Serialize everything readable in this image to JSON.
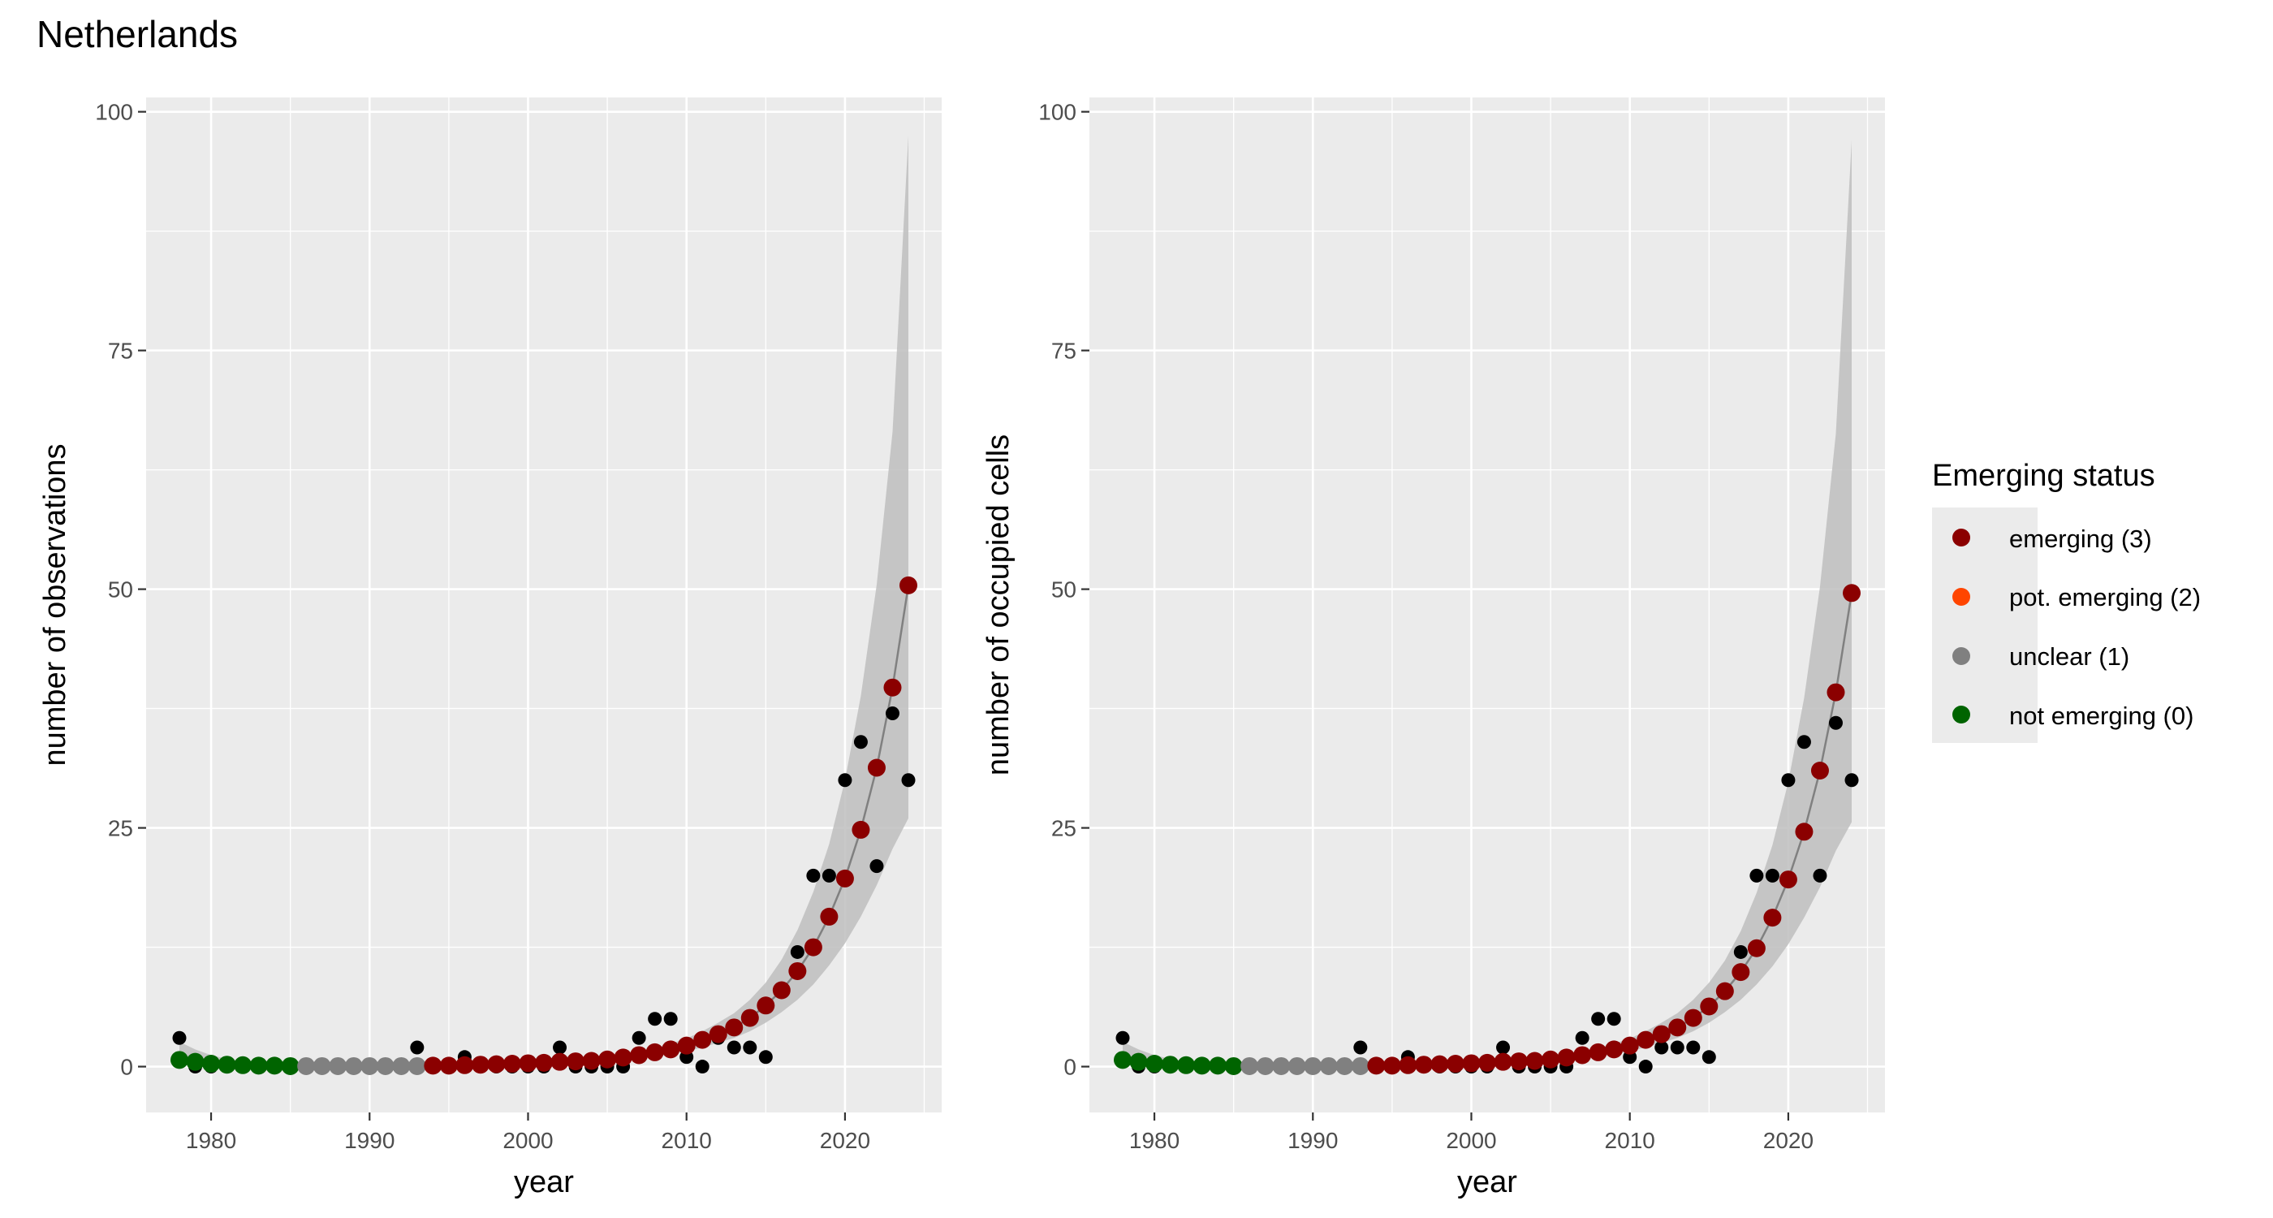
{
  "title": "Netherlands",
  "legend": {
    "title": "Emerging status",
    "items": [
      {
        "label": "emerging (3)",
        "color": "#8B0000"
      },
      {
        "label": "pot. emerging (2)",
        "color": "#FF4500"
      },
      {
        "label": "unclear (1)",
        "color": "#808080"
      },
      {
        "label": "not emerging (0)",
        "color": "#006400"
      }
    ]
  },
  "colors": {
    "panel": "#EBEBEB",
    "observed_points": "#000000",
    "ribbon": "#BEBEBE",
    "fit_line": "#808080"
  },
  "chart_data": [
    {
      "type": "scatter",
      "xlabel": "year",
      "ylabel": "number of observations",
      "xlim": [
        1975.9,
        2026.1
      ],
      "ylim": [
        -4.8,
        101.5
      ],
      "x_ticks": [
        1980,
        1990,
        2000,
        2010,
        2020
      ],
      "y_ticks": [
        0,
        25,
        50,
        75,
        100
      ],
      "grid": true,
      "legend_position": "right",
      "observed": {
        "x": [
          1978,
          1979,
          1980,
          1981,
          1982,
          1983,
          1984,
          1985,
          1986,
          1987,
          1988,
          1989,
          1990,
          1991,
          1992,
          1993,
          1994,
          1995,
          1996,
          1997,
          1998,
          1999,
          2000,
          2001,
          2002,
          2003,
          2004,
          2005,
          2006,
          2007,
          2008,
          2009,
          2010,
          2011,
          2012,
          2013,
          2014,
          2015,
          2016,
          2017,
          2018,
          2019,
          2020,
          2021,
          2022,
          2023,
          2024
        ],
        "y": [
          3,
          0,
          0,
          0,
          0,
          0,
          0,
          0,
          0,
          0,
          0,
          0,
          0,
          0,
          0,
          2,
          0,
          0,
          1,
          0,
          0,
          0,
          0,
          0,
          2,
          0,
          0,
          0,
          0,
          3,
          5,
          5,
          1,
          0,
          3,
          2,
          2,
          1,
          8,
          12,
          20,
          20,
          30,
          34,
          21,
          37,
          30
        ]
      },
      "fit": {
        "x": [
          1978,
          1979,
          1980,
          1981,
          1982,
          1983,
          1984,
          1985,
          1986,
          1987,
          1988,
          1989,
          1990,
          1991,
          1992,
          1993,
          1994,
          1995,
          1996,
          1997,
          1998,
          1999,
          2000,
          2001,
          2002,
          2003,
          2004,
          2005,
          2006,
          2007,
          2008,
          2009,
          2010,
          2011,
          2012,
          2013,
          2014,
          2015,
          2016,
          2017,
          2018,
          2019,
          2020,
          2021,
          2022,
          2023,
          2024
        ],
        "y": [
          0.7,
          0.5,
          0.3,
          0.2,
          0.15,
          0.1,
          0.1,
          0.05,
          0.05,
          0.05,
          0.05,
          0.05,
          0.05,
          0.05,
          0.05,
          0.05,
          0.1,
          0.1,
          0.15,
          0.2,
          0.25,
          0.3,
          0.35,
          0.4,
          0.5,
          0.55,
          0.6,
          0.75,
          0.95,
          1.2,
          1.5,
          1.8,
          2.2,
          2.8,
          3.4,
          4.1,
          5.1,
          6.4,
          8.0,
          10.0,
          12.5,
          15.7,
          19.7,
          24.8,
          31.3,
          39.7,
          50.4
        ],
        "lower": [
          0.2,
          0.1,
          0.05,
          0.02,
          0.01,
          0.01,
          0.01,
          0,
          0,
          0,
          0,
          0,
          0,
          0,
          0,
          0,
          0,
          0.02,
          0.05,
          0.08,
          0.1,
          0.15,
          0.2,
          0.25,
          0.3,
          0.35,
          0.4,
          0.5,
          0.65,
          0.85,
          1.1,
          1.3,
          1.6,
          2.0,
          2.5,
          3.0,
          3.7,
          4.6,
          5.7,
          7.0,
          8.6,
          10.6,
          12.9,
          15.7,
          19.0,
          22.8,
          26.0
        ],
        "upper": [
          2.6,
          1.8,
          1.2,
          0.8,
          0.55,
          0.4,
          0.3,
          0.22,
          0.18,
          0.15,
          0.14,
          0.13,
          0.13,
          0.14,
          0.15,
          0.18,
          0.2,
          0.22,
          0.26,
          0.3,
          0.36,
          0.42,
          0.5,
          0.58,
          0.66,
          0.76,
          0.86,
          1.05,
          1.3,
          1.6,
          1.95,
          2.4,
          2.95,
          3.7,
          4.6,
          5.6,
          7.0,
          8.8,
          11.2,
          14.3,
          18.3,
          23.3,
          30.0,
          38.8,
          50.5,
          66.5,
          97.5
        ],
        "status": [
          0,
          0,
          0,
          0,
          0,
          0,
          0,
          0,
          1,
          1,
          1,
          1,
          1,
          1,
          1,
          1,
          3,
          3,
          3,
          3,
          3,
          3,
          3,
          3,
          3,
          3,
          3,
          3,
          3,
          3,
          3,
          3,
          3,
          3,
          3,
          3,
          3,
          3,
          3,
          3,
          3,
          3,
          3,
          3,
          3,
          3,
          3
        ]
      }
    },
    {
      "type": "scatter",
      "xlabel": "year",
      "ylabel": "number of occupied cells",
      "xlim": [
        1975.9,
        2026.1
      ],
      "ylim": [
        -4.8,
        101.5
      ],
      "x_ticks": [
        1980,
        1990,
        2000,
        2010,
        2020
      ],
      "y_ticks": [
        0,
        25,
        50,
        75,
        100
      ],
      "grid": true,
      "legend_position": "right",
      "observed": {
        "x": [
          1978,
          1979,
          1980,
          1981,
          1982,
          1983,
          1984,
          1985,
          1986,
          1987,
          1988,
          1989,
          1990,
          1991,
          1992,
          1993,
          1994,
          1995,
          1996,
          1997,
          1998,
          1999,
          2000,
          2001,
          2002,
          2003,
          2004,
          2005,
          2006,
          2007,
          2008,
          2009,
          2010,
          2011,
          2012,
          2013,
          2014,
          2015,
          2016,
          2017,
          2018,
          2019,
          2020,
          2021,
          2022,
          2023,
          2024
        ],
        "y": [
          3,
          0,
          0,
          0,
          0,
          0,
          0,
          0,
          0,
          0,
          0,
          0,
          0,
          0,
          0,
          2,
          0,
          0,
          1,
          0,
          0,
          0,
          0,
          0,
          2,
          0,
          0,
          0,
          0,
          3,
          5,
          5,
          1,
          0,
          2,
          2,
          2,
          1,
          8,
          12,
          20,
          20,
          30,
          34,
          20,
          36,
          30
        ]
      },
      "fit": {
        "x": [
          1978,
          1979,
          1980,
          1981,
          1982,
          1983,
          1984,
          1985,
          1986,
          1987,
          1988,
          1989,
          1990,
          1991,
          1992,
          1993,
          1994,
          1995,
          1996,
          1997,
          1998,
          1999,
          2000,
          2001,
          2002,
          2003,
          2004,
          2005,
          2006,
          2007,
          2008,
          2009,
          2010,
          2011,
          2012,
          2013,
          2014,
          2015,
          2016,
          2017,
          2018,
          2019,
          2020,
          2021,
          2022,
          2023,
          2024
        ],
        "y": [
          0.7,
          0.5,
          0.3,
          0.2,
          0.15,
          0.1,
          0.1,
          0.05,
          0.05,
          0.05,
          0.05,
          0.05,
          0.05,
          0.05,
          0.05,
          0.05,
          0.1,
          0.1,
          0.15,
          0.2,
          0.25,
          0.3,
          0.35,
          0.4,
          0.5,
          0.55,
          0.6,
          0.75,
          0.95,
          1.2,
          1.5,
          1.8,
          2.2,
          2.8,
          3.4,
          4.1,
          5.1,
          6.3,
          7.9,
          9.9,
          12.4,
          15.6,
          19.6,
          24.6,
          31.0,
          39.2,
          49.6
        ],
        "lower": [
          0.2,
          0.1,
          0.05,
          0.02,
          0.01,
          0.01,
          0.01,
          0,
          0,
          0,
          0,
          0,
          0,
          0,
          0,
          0,
          0,
          0.02,
          0.05,
          0.08,
          0.1,
          0.15,
          0.2,
          0.25,
          0.3,
          0.35,
          0.4,
          0.5,
          0.65,
          0.85,
          1.1,
          1.3,
          1.6,
          2.0,
          2.5,
          3.0,
          3.7,
          4.6,
          5.7,
          7.0,
          8.6,
          10.5,
          12.8,
          15.6,
          18.8,
          22.6,
          25.6
        ],
        "upper": [
          2.6,
          1.8,
          1.2,
          0.8,
          0.55,
          0.4,
          0.3,
          0.22,
          0.18,
          0.15,
          0.14,
          0.13,
          0.13,
          0.14,
          0.15,
          0.18,
          0.2,
          0.22,
          0.26,
          0.3,
          0.36,
          0.42,
          0.5,
          0.58,
          0.66,
          0.76,
          0.86,
          1.05,
          1.3,
          1.6,
          1.95,
          2.4,
          2.95,
          3.7,
          4.6,
          5.6,
          7.0,
          8.8,
          11.1,
          14.2,
          18.2,
          23.2,
          29.8,
          38.6,
          50.3,
          66.3,
          97.0
        ],
        "status": [
          0,
          0,
          0,
          0,
          0,
          0,
          0,
          0,
          1,
          1,
          1,
          1,
          1,
          1,
          1,
          1,
          3,
          3,
          3,
          3,
          3,
          3,
          3,
          3,
          3,
          3,
          3,
          3,
          3,
          3,
          3,
          3,
          3,
          3,
          3,
          3,
          3,
          3,
          3,
          3,
          3,
          3,
          3,
          3,
          3,
          3,
          3
        ]
      }
    }
  ]
}
